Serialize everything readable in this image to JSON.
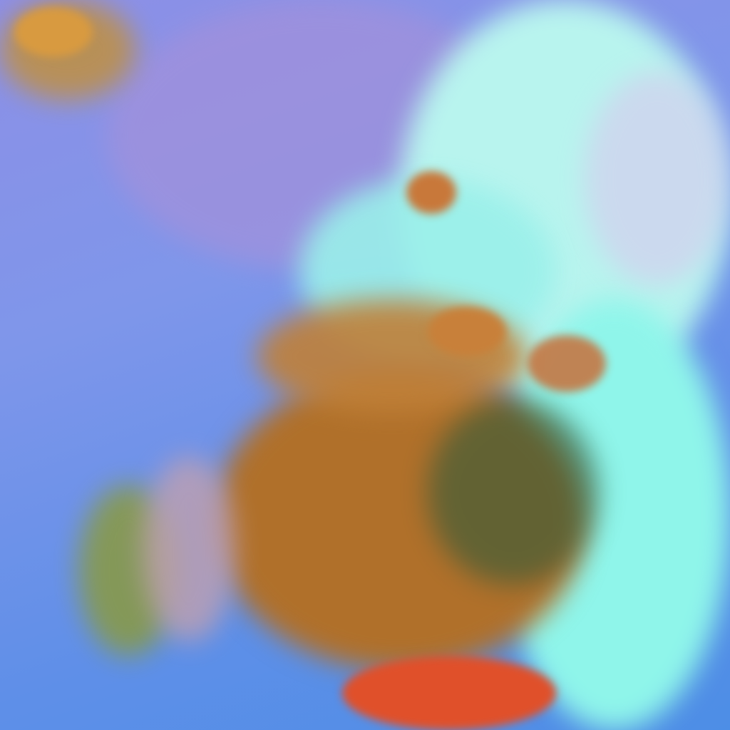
{
  "image": {
    "kind": "false-color satellite imagery",
    "palette": {
      "ocean": "#6f8ee6",
      "haze": "#a08fd8",
      "cloud_cyan": "#8ff5ea",
      "cloud_white": "#d6f2f2",
      "land_orange": "#b8712a",
      "land_dark": "#4a5a2a",
      "hot_red": "#e8502a"
    }
  }
}
